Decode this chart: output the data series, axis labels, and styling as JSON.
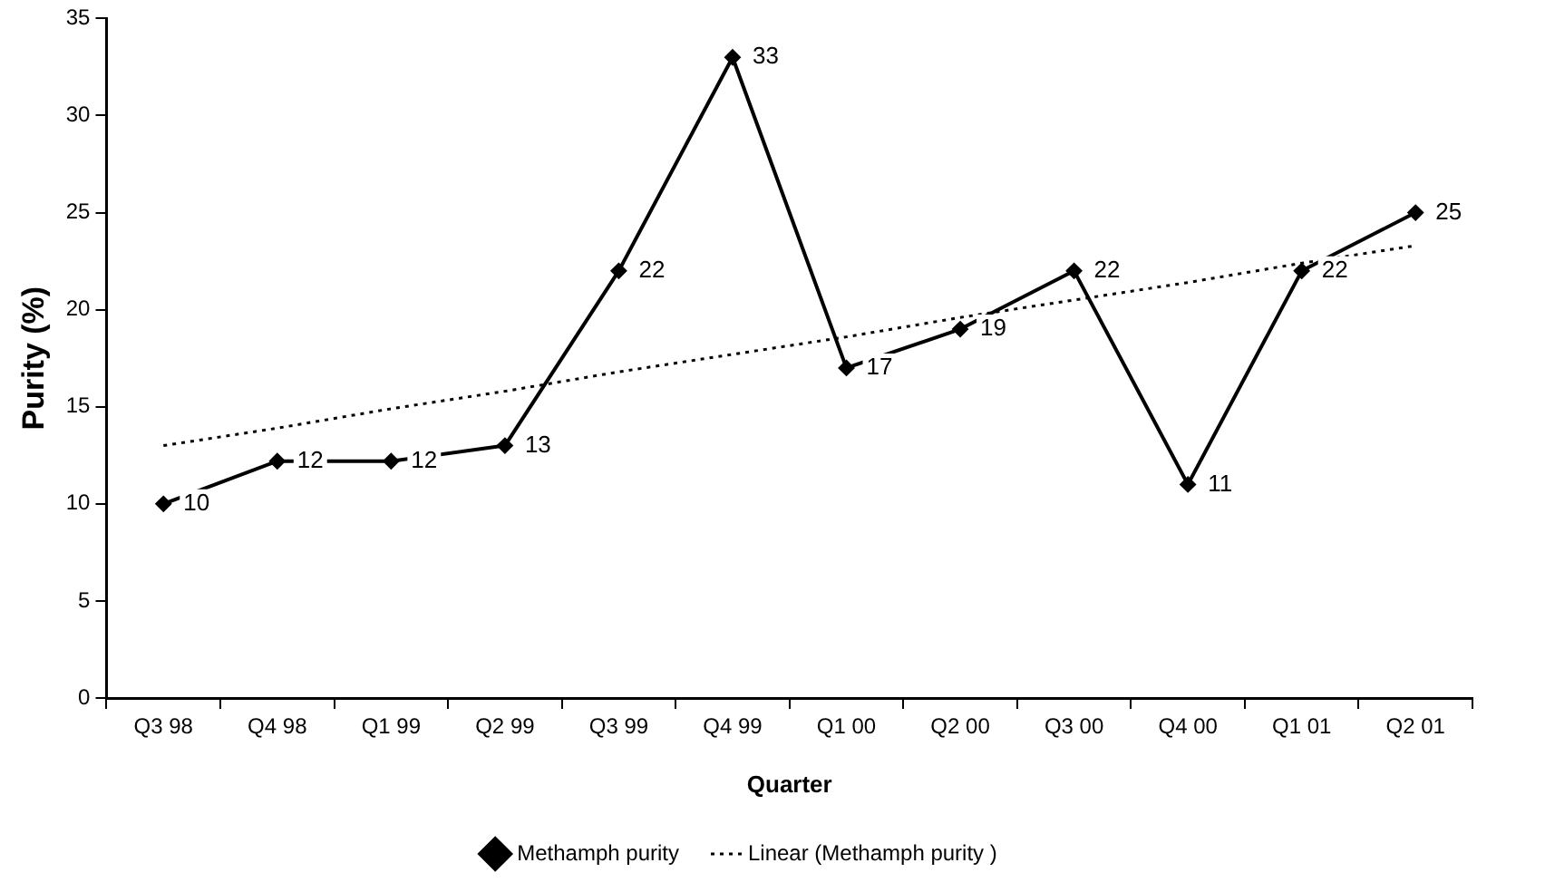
{
  "chart_data": {
    "type": "line",
    "xlabel": "Quarter",
    "ylabel": "Purity (%)",
    "categories": [
      "Q3 98",
      "Q4 98",
      "Q1 99",
      "Q2 99",
      "Q3 99",
      "Q4 99",
      "Q1 00",
      "Q2 00",
      "Q3 00",
      "Q4 00",
      "Q1 01",
      "Q2 01"
    ],
    "series": [
      {
        "name": "Methamph purity",
        "color": "#000000",
        "marker": "diamond",
        "line_style": "solid",
        "values": [
          10,
          12.2,
          12.2,
          13,
          22,
          33,
          17,
          19,
          22,
          11,
          22,
          25
        ],
        "value_labels": [
          "10",
          "12",
          "12",
          "13",
          "22",
          "33",
          "17",
          "19",
          "22",
          "11",
          "22",
          "25"
        ]
      },
      {
        "name": "Linear (Methamph purity )",
        "color": "#000000",
        "marker": "none",
        "line_style": "dotted",
        "values": [
          13.0,
          13.9,
          14.9,
          15.8,
          16.8,
          17.7,
          18.6,
          19.6,
          20.5,
          21.4,
          22.4,
          23.3
        ]
      }
    ],
    "ylim": [
      0,
      35
    ],
    "yticks": [
      0,
      5,
      10,
      15,
      20,
      25,
      30,
      35
    ],
    "grid": false,
    "legend": "bottom"
  }
}
